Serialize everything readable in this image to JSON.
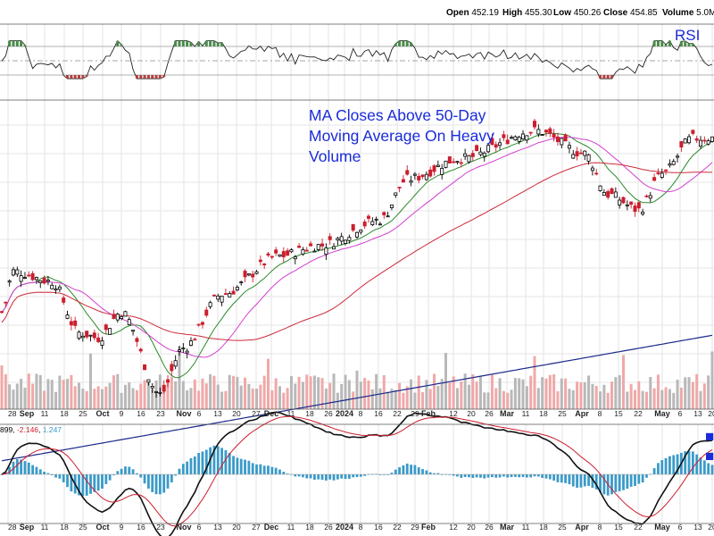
{
  "header": {
    "open_label": "Open",
    "open": "452.19",
    "high_label": "High",
    "high": "455.30",
    "low_label": "Low",
    "low": "450.26",
    "close_label": "Close",
    "close": "454.85",
    "volume_label": "Volume",
    "volume": "5.0M"
  },
  "panels": {
    "rsi_label": "RSI",
    "macd_values": {
      "a": "899",
      "b": "-2.146",
      "c": "1.247"
    }
  },
  "annotation": {
    "lines": [
      "MA Closes Above 50-Day",
      "Moving Average On Heavy",
      "Volume"
    ]
  },
  "colors": {
    "up": "#000000",
    "down": "#cc1e2e",
    "ma_green": "#2a8a2a",
    "ma_magenta": "#d33fd0",
    "ma_red": "#cc2a3a",
    "ma_blue": "#1c2a8c",
    "vol_up": "#b8b8b8",
    "vol_down": "#f0a8a8",
    "histogram": "#3a9ac8",
    "annotation": "#1a2bd8"
  },
  "chart_data": {
    "type": "candlestick",
    "x_axis": {
      "tick_labels": [
        "28",
        "Sep",
        "11",
        "18",
        "25",
        "Oct",
        "9",
        "16",
        "23",
        "Nov",
        "6",
        "13",
        "20",
        "27",
        "Dec",
        "11",
        "18",
        "26",
        "2024",
        "8",
        "16",
        "22",
        "29",
        "Feb",
        "12",
        "20",
        "26",
        "Mar",
        "11",
        "18",
        "25",
        "Apr",
        "8",
        "15",
        "22",
        "May",
        "6",
        "13",
        "20"
      ],
      "bold_labels": [
        "Sep",
        "Oct",
        "Nov",
        "Dec",
        "2024",
        "Feb",
        "Mar",
        "Apr",
        "May"
      ]
    },
    "price_key_points": [
      {
        "x": "Aug 28",
        "close": 384
      },
      {
        "x": "Sep 1",
        "close": 400
      },
      {
        "x": "Sep 15",
        "close": 396
      },
      {
        "x": "Sep 25",
        "close": 376
      },
      {
        "x": "Oct 3",
        "close": 374
      },
      {
        "x": "Oct 11",
        "close": 384
      },
      {
        "x": "Oct 27",
        "close": 352
      },
      {
        "x": "Nov 6",
        "close": 370
      },
      {
        "x": "Nov 20",
        "close": 391
      },
      {
        "x": "Dec 13",
        "close": 406
      },
      {
        "x": "Dec 28",
        "close": 410
      },
      {
        "x": "Jan 22",
        "close": 420
      },
      {
        "x": "Feb 1",
        "close": 436
      },
      {
        "x": "Feb 22",
        "close": 444
      },
      {
        "x": "Mar 22",
        "close": 455
      },
      {
        "x": "Apr 10",
        "close": 446
      },
      {
        "x": "Apr 19",
        "close": 430
      },
      {
        "x": "Apr 30",
        "close": 424
      },
      {
        "x": "May 10",
        "close": 438
      },
      {
        "x": "May 22",
        "close": 452
      }
    ],
    "moving_averages": [
      "10-day",
      "20-day",
      "50-day",
      "200-day"
    ],
    "rsi_range": [
      0,
      100
    ],
    "rsi_levels": [
      70,
      50,
      30
    ],
    "indicators": [
      "RSI",
      "Volume",
      "MACD"
    ]
  }
}
